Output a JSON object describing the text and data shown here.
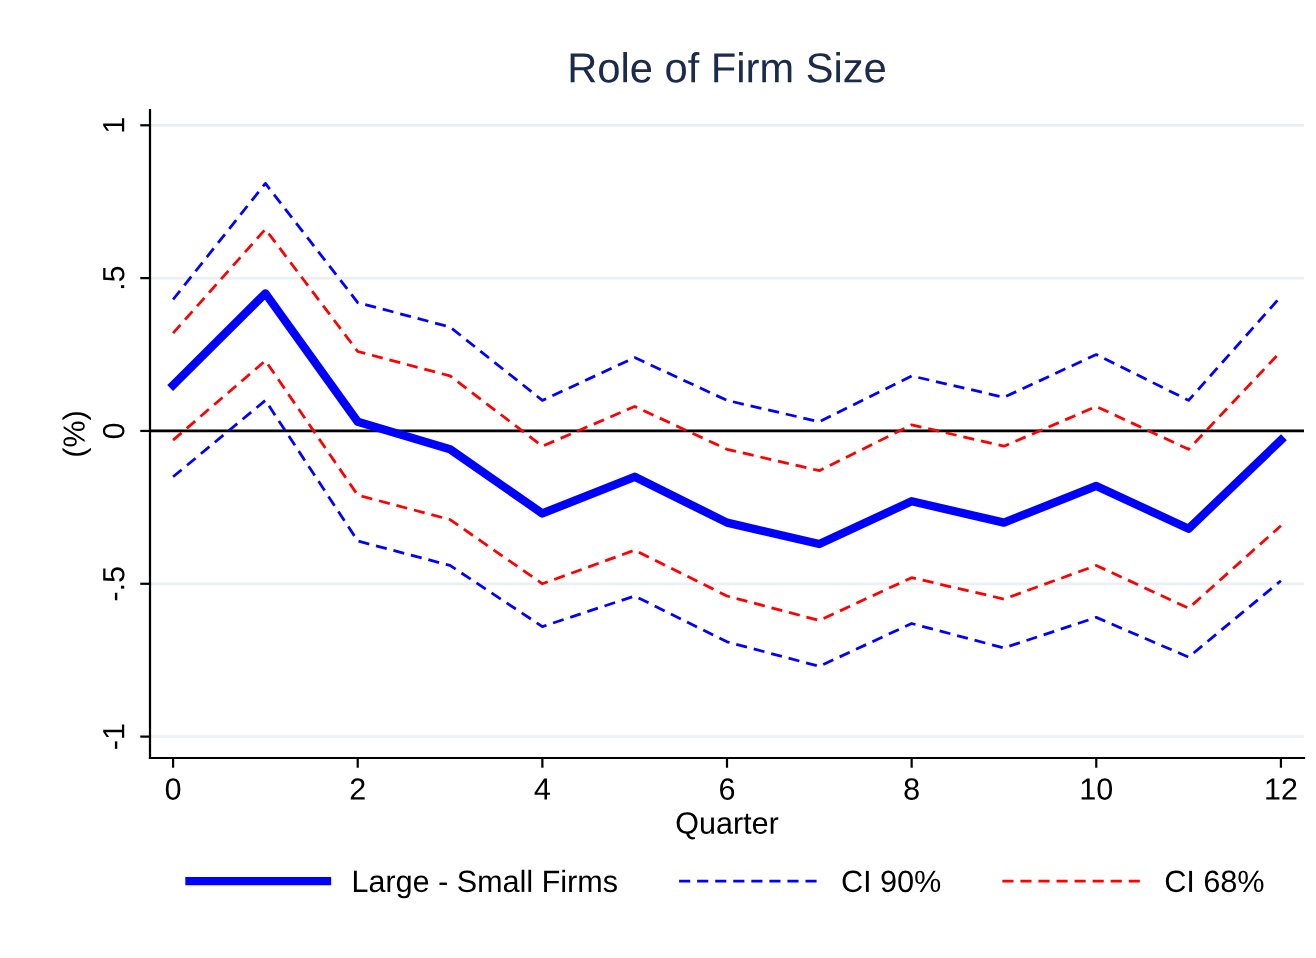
{
  "chart_data": {
    "type": "line",
    "title": "Role of Firm Size",
    "xlabel": "Quarter",
    "ylabel": "(%)",
    "x": [
      0,
      1,
      2,
      3,
      4,
      5,
      6,
      7,
      8,
      9,
      10,
      11,
      12
    ],
    "series": [
      {
        "name": "Large - Small Firms",
        "color": "#0000ff",
        "line_style": "solid",
        "values": [
          0.15,
          0.45,
          0.03,
          -0.06,
          -0.27,
          -0.15,
          -0.3,
          -0.37,
          -0.23,
          -0.3,
          -0.18,
          -0.32,
          -0.03
        ]
      },
      {
        "name": "CI 90%",
        "color": "#0000ff",
        "line_style": "dashed",
        "values": [
          0.43,
          0.81,
          0.42,
          0.34,
          0.1,
          0.24,
          0.1,
          0.03,
          0.18,
          0.11,
          0.25,
          0.1,
          0.44
        ]
      },
      {
        "color": "#0000ff",
        "line_style": "dashed",
        "values": [
          -0.15,
          0.1,
          -0.36,
          -0.44,
          -0.64,
          -0.54,
          -0.69,
          -0.77,
          -0.63,
          -0.71,
          -0.61,
          -0.74,
          -0.49
        ]
      },
      {
        "name": "CI 68%",
        "color": "#ff0000",
        "line_style": "dashed",
        "values": [
          0.32,
          0.66,
          0.26,
          0.18,
          -0.05,
          0.08,
          -0.06,
          -0.13,
          0.02,
          -0.05,
          0.08,
          -0.06,
          0.26
        ]
      },
      {
        "color": "#ff0000",
        "line_style": "dashed",
        "values": [
          -0.03,
          0.23,
          -0.21,
          -0.29,
          -0.5,
          -0.39,
          -0.54,
          -0.62,
          -0.48,
          -0.55,
          -0.44,
          -0.58,
          -0.31
        ]
      }
    ],
    "xlim": [
      -0.25,
      12.25
    ],
    "xticks": [
      0,
      2,
      4,
      6,
      8,
      10,
      12
    ],
    "ylim": [
      -1.07,
      1.05
    ],
    "yticks": [
      {
        "value": -1,
        "label": "-1"
      },
      {
        "value": -0.5,
        "label": "-.5"
      },
      0,
      {
        "value": 0.5,
        "label": ".5"
      },
      1
    ],
    "ref_lines": [
      {
        "axis": "y",
        "value": 0,
        "color": "#000000"
      }
    ],
    "grid": "y",
    "legend": "bottom"
  }
}
